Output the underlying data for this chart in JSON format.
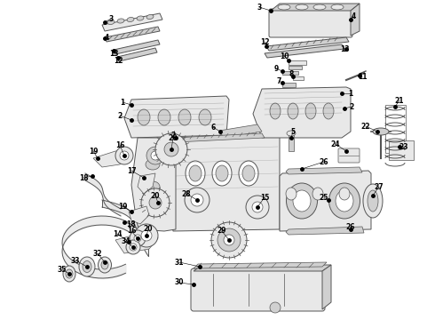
{
  "bg_color": "#ffffff",
  "lc": "#555555",
  "fc": "#e8e8e8",
  "fc2": "#d0d0d0",
  "lbl": "#000000",
  "figsize": [
    4.9,
    3.6
  ],
  "dpi": 100,
  "lw": 0.7,
  "lw2": 0.5,
  "anno_fs": 5.5
}
